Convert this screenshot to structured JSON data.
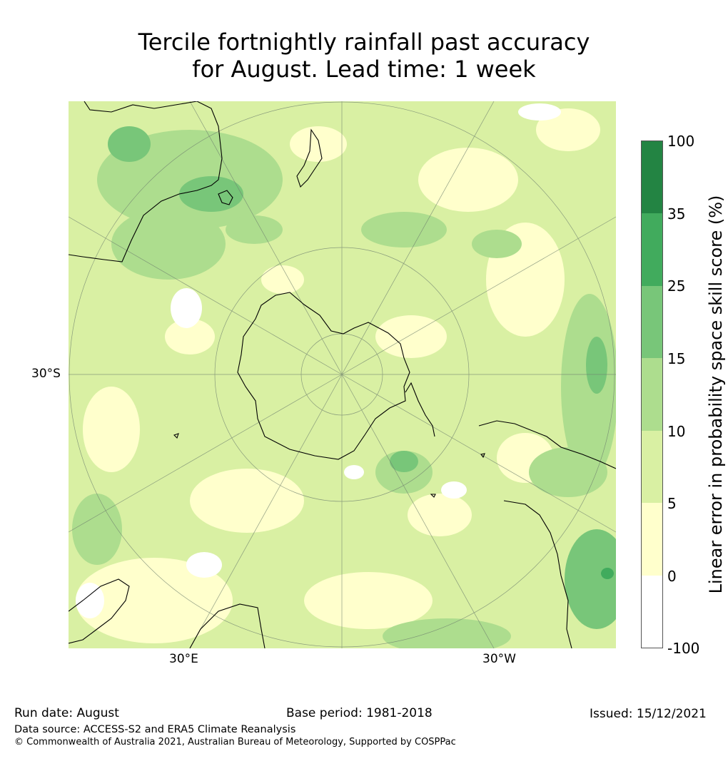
{
  "title": {
    "line1": "Tercile fortnightly rainfall past accuracy",
    "line2": "for August. Lead time: 1 week"
  },
  "map": {
    "projection": "south polar stereographic",
    "lat_label": "30°S",
    "lon_labels": [
      "30°E",
      "30°W"
    ]
  },
  "colorbar": {
    "label": "Linear error in probability space skill score (%)",
    "ticks": [
      "100",
      "35",
      "25",
      "15",
      "10",
      "5",
      "0",
      "-100"
    ],
    "levels": [
      {
        "range": "-100 to 0",
        "color": "#ffffff"
      },
      {
        "range": "0 to 5",
        "color": "#ffffcc"
      },
      {
        "range": "5 to 10",
        "color": "#d9f0a3"
      },
      {
        "range": "10 to 15",
        "color": "#addd8e"
      },
      {
        "range": "15 to 25",
        "color": "#78c679"
      },
      {
        "range": "25 to 35",
        "color": "#41ab5d"
      },
      {
        "range": "35 to 100",
        "color": "#238443"
      }
    ]
  },
  "footer": {
    "run_date": "Run date: August",
    "base_period": "Base period: 1981-2018",
    "issued": "Issued: 15/12/2021",
    "data_source": "Data source: ACCESS-S2 and ERA5 Climate Reanalysis",
    "copyright": "© Commonwealth of Australia 2021, Australian Bureau of Meteorology, Supported by COSPPac"
  }
}
